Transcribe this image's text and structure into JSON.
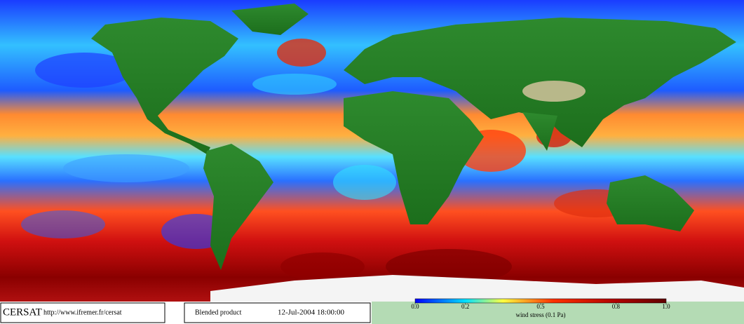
{
  "logo": "CERSAT",
  "url": "http://www.ifremer.fr/cersat",
  "product": "Blended product",
  "datetime": "12-Jul-2004 18:00:00",
  "colorbar": {
    "label": "wind stress (0.1 Pa)",
    "lim": [
      0,
      1
    ],
    "ticks": [
      {
        "value": 0,
        "label": "0.0"
      },
      0.2,
      0.5,
      0.8,
      {
        "value": 1,
        "label": "1.0"
      }
    ]
  }
}
